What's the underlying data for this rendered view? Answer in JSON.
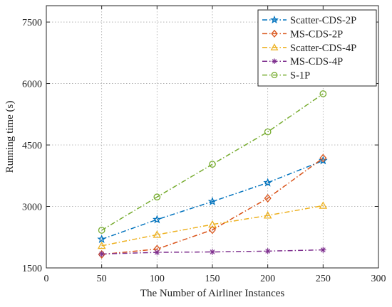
{
  "chart_data": {
    "type": "line",
    "xlabel": "The Number of Airliner Instances",
    "ylabel": "Running time (s)",
    "xlim": [
      0,
      300
    ],
    "ylim": [
      1500,
      7900
    ],
    "xticks": [
      0,
      50,
      100,
      150,
      200,
      250,
      300
    ],
    "yticks": [
      1500,
      3000,
      4500,
      6000,
      7500
    ],
    "grid": true,
    "legend_position": "top-right",
    "x": [
      50,
      100,
      150,
      200,
      250
    ],
    "series": [
      {
        "name": "Scatter-CDS-2P",
        "color": "#0072BD",
        "marker": "star",
        "dash": "dash-dot",
        "values": [
          2200,
          2680,
          3120,
          3580,
          4120
        ]
      },
      {
        "name": "MS-CDS-2P",
        "color": "#D95319",
        "marker": "diamond",
        "dash": "dash-dot",
        "values": [
          1830,
          1960,
          2430,
          3200,
          4180
        ]
      },
      {
        "name": "Scatter-CDS-4P",
        "color": "#EDB120",
        "marker": "triangle",
        "dash": "dash-dot",
        "values": [
          2040,
          2310,
          2560,
          2780,
          3020
        ]
      },
      {
        "name": "MS-CDS-4P",
        "color": "#7E2F8E",
        "marker": "asterisk",
        "dash": "dash-dot",
        "values": [
          1840,
          1880,
          1890,
          1910,
          1940
        ]
      },
      {
        "name": "S-1P",
        "color": "#77AC30",
        "marker": "circle",
        "dash": "dash-dot",
        "values": [
          2420,
          3230,
          4030,
          4820,
          5750
        ]
      }
    ]
  }
}
